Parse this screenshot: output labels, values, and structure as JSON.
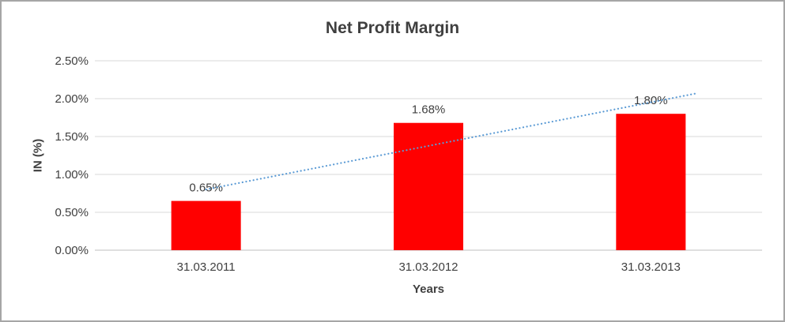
{
  "chart_data": {
    "type": "bar",
    "title": "Net Profit Margin",
    "xlabel": "Years",
    "ylabel": "IN (%)",
    "categories": [
      "31.03.2011",
      "31.03.2012",
      "31.03.2013"
    ],
    "values": [
      0.65,
      1.68,
      1.8
    ],
    "data_labels": [
      "0.65%",
      "1.68%",
      "1.80%"
    ],
    "ylim": [
      0,
      2.5
    ],
    "ytick_step": 0.5,
    "ytick_labels": [
      "0.00%",
      "0.50%",
      "1.00%",
      "1.50%",
      "2.00%",
      "2.50%"
    ],
    "grid": true,
    "legend": "none",
    "bar_color": "#ff0000",
    "trendline": {
      "type": "linear",
      "style": "dotted",
      "color": "#5b9bd5",
      "forecast_forward": 0.2
    }
  },
  "colors": {
    "gridline": "#d9d9d9",
    "axis_line": "#bfbfbf",
    "tick_text": "#404040",
    "label_text": "#404040",
    "border": "#a6a6a6",
    "background": "#ffffff"
  }
}
